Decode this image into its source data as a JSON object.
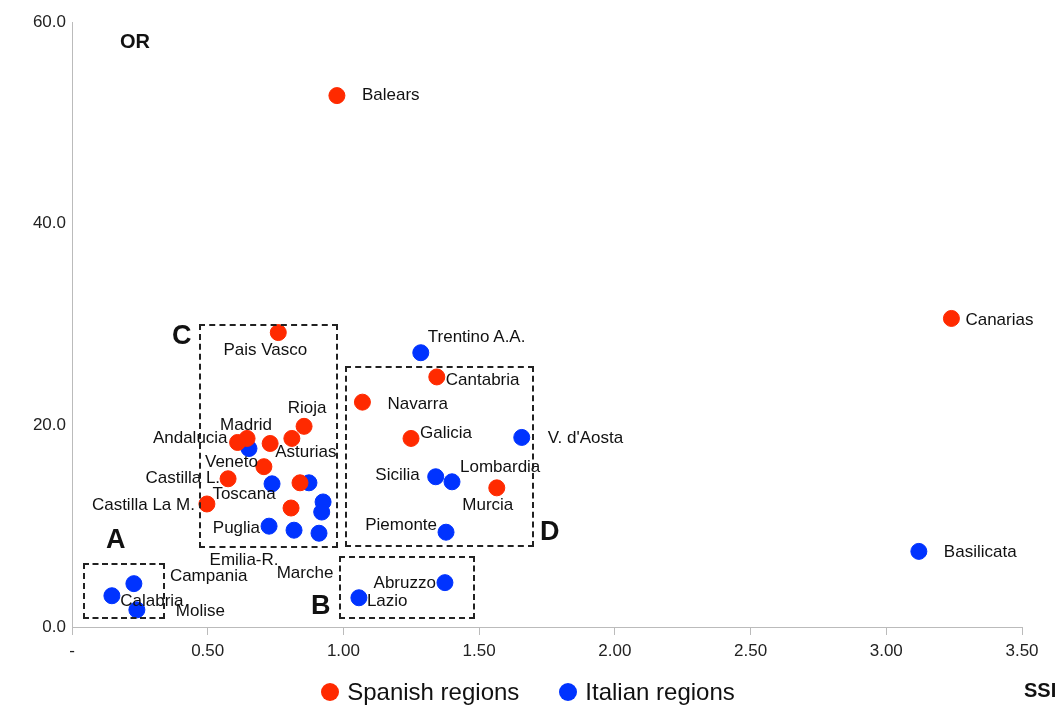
{
  "chart_data": {
    "type": "scatter",
    "xlabel": "SSI",
    "ylabel": "OR",
    "xlim": [
      0,
      3.5
    ],
    "ylim": [
      0,
      60
    ],
    "xticks": [
      {
        "value": 0,
        "label": "-"
      },
      {
        "value": 0.5,
        "label": "0.50"
      },
      {
        "value": 1,
        "label": "1.00"
      },
      {
        "value": 1.5,
        "label": "1.50"
      },
      {
        "value": 2,
        "label": "2.00"
      },
      {
        "value": 2.5,
        "label": "2.50"
      },
      {
        "value": 3,
        "label": "3.00"
      },
      {
        "value": 3.5,
        "label": "3.50"
      }
    ],
    "yticks": [
      {
        "value": 0,
        "label": "0.0"
      },
      {
        "value": 20,
        "label": "20.0"
      },
      {
        "value": 40,
        "label": "40.0"
      },
      {
        "value": 60,
        "label": "60.0"
      }
    ],
    "grid": false,
    "legend": "bottom",
    "marker": "circle",
    "series": [
      {
        "name": "Spanish regions",
        "color": "#ff2a00",
        "x": [
          0.976,
          3.24,
          0.76,
          1.344,
          1.07,
          1.249,
          1.565,
          0.855,
          0.81,
          0.73,
          0.645,
          0.61,
          0.707,
          0.575,
          0.497,
          0.84,
          0.807
        ],
        "values": [
          52.7,
          30.6,
          29.2,
          24.8,
          22.3,
          18.7,
          13.8,
          19.9,
          18.7,
          18.2,
          18.7,
          18.3,
          15.9,
          14.7,
          12.2,
          14.3,
          11.8
        ]
      },
      {
        "name": "Italian regions",
        "color": "#0033ff",
        "x": [
          1.285,
          1.657,
          1.34,
          1.4,
          1.378,
          0.652,
          0.737,
          0.873,
          0.925,
          0.92,
          0.726,
          0.818,
          0.91,
          0.228,
          0.147,
          0.239,
          1.374,
          1.057,
          3.12
        ],
        "values": [
          27.2,
          18.8,
          14.9,
          14.4,
          9.4,
          17.7,
          14.2,
          14.3,
          12.4,
          11.4,
          10.0,
          9.6,
          9.3,
          4.3,
          3.1,
          1.7,
          4.4,
          2.9,
          7.5
        ]
      }
    ],
    "annotations": [
      {
        "text": "Balears",
        "x": 0.976,
        "y": 52.7
      },
      {
        "text": "Canarias",
        "x": 3.24,
        "y": 30.6
      },
      {
        "text": "Pais Vasco",
        "x": 0.76,
        "y": 29.2
      },
      {
        "text": "Trentino A.A.",
        "x": 1.285,
        "y": 27.2
      },
      {
        "text": "Cantabria",
        "x": 1.344,
        "y": 24.8
      },
      {
        "text": "Navarra",
        "x": 1.07,
        "y": 22.3
      },
      {
        "text": "Galicia",
        "x": 1.249,
        "y": 18.7
      },
      {
        "text": "V. d'Aosta",
        "x": 1.657,
        "y": 18.8
      },
      {
        "text": "Rioja",
        "x": 0.855,
        "y": 19.9
      },
      {
        "text": "Madrid",
        "x": 0.645,
        "y": 18.7
      },
      {
        "text": "Andalucia",
        "x": 0.61,
        "y": 18.3
      },
      {
        "text": "Asturias",
        "x": 0.73,
        "y": 18.2
      },
      {
        "text": "Veneto",
        "x": 0.652,
        "y": 17.7
      },
      {
        "text": "Castilla L.",
        "x": 0.575,
        "y": 14.7
      },
      {
        "text": "Toscana",
        "x": 0.737,
        "y": 14.2
      },
      {
        "text": "Castilla La M.",
        "x": 0.497,
        "y": 12.2
      },
      {
        "text": "Puglia",
        "x": 0.726,
        "y": 10.0
      },
      {
        "text": "Emilia-R.",
        "x": 0.818,
        "y": 9.6
      },
      {
        "text": "Marche",
        "x": 0.91,
        "y": 9.3
      },
      {
        "text": "Sicilia",
        "x": 1.34,
        "y": 14.9
      },
      {
        "text": "Lombardia",
        "x": 1.4,
        "y": 14.4
      },
      {
        "text": "Murcia",
        "x": 1.565,
        "y": 13.8
      },
      {
        "text": "Piemonte",
        "x": 1.378,
        "y": 9.4
      },
      {
        "text": "Campania",
        "x": 0.228,
        "y": 4.3
      },
      {
        "text": "Calabria",
        "x": 0.147,
        "y": 3.1
      },
      {
        "text": "Molise",
        "x": 0.239,
        "y": 1.7
      },
      {
        "text": "Abruzzo",
        "x": 1.374,
        "y": 4.4
      },
      {
        "text": "Lazio",
        "x": 1.057,
        "y": 2.9
      },
      {
        "text": "Basilicata",
        "x": 3.12,
        "y": 7.5
      },
      "A",
      "B",
      "C",
      "D"
    ]
  }
}
